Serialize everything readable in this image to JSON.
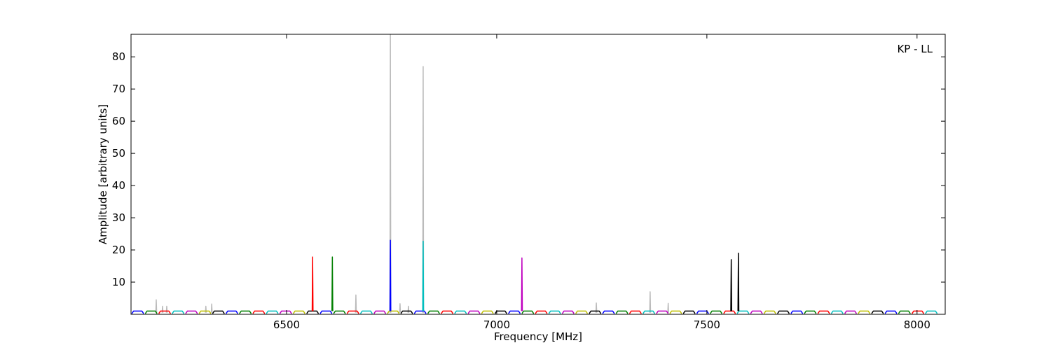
{
  "chart_data": {
    "type": "line",
    "xlabel": "Frequency [MHz]",
    "ylabel": "Amplitude [arbitrary units]",
    "annotation": "KP - LL",
    "xlim": [
      6130,
      8067
    ],
    "ylim": [
      0,
      87
    ],
    "xticks": [
      6500,
      7000,
      7500,
      8000
    ],
    "yticks": [
      10,
      20,
      30,
      40,
      50,
      60,
      70,
      80
    ],
    "series": [
      {
        "color": "#bbbbbb",
        "x": [
          6189,
          6190,
          6191,
          6192,
          6204,
          6205,
          6206,
          6207,
          6214,
          6215,
          6216,
          6217,
          6307,
          6308,
          6309,
          6310,
          6321,
          6322,
          6323,
          6324,
          6664,
          6665,
          6666,
          6667,
          6746,
          6747,
          6748,
          6749,
          6769,
          6770,
          6771,
          6772,
          6789,
          6790,
          6791,
          6792,
          6824,
          6825,
          6826,
          6827,
          7236,
          7237,
          7238,
          7239,
          7364,
          7365,
          7366,
          7367,
          7407,
          7408,
          7409,
          7410
        ],
        "values": [
          0.5,
          4.5,
          0.5,
          null,
          0.5,
          2.5,
          0.5,
          null,
          0.5,
          2.5,
          0.5,
          null,
          0.5,
          2.5,
          0.5,
          null,
          0.5,
          3.2,
          0.5,
          null,
          0.5,
          6,
          0.5,
          null,
          0.5,
          87,
          0.5,
          null,
          0.5,
          3.3,
          0.5,
          null,
          0.5,
          2.5,
          0.5,
          null,
          0.5,
          77,
          0.5,
          null,
          0.5,
          3.5,
          0.5,
          null,
          0.5,
          7,
          0.5,
          null,
          0.5,
          3.4,
          0.5,
          null
        ]
      },
      {
        "color": "#0000ff",
        "x": [
          6132,
          6136,
          6156,
          6160,
          6162,
          6356,
          6360,
          6380,
          6384,
          6386,
          6580,
          6584,
          6604,
          6608,
          6610,
          6804,
          6808,
          6828,
          6832,
          6834,
          7028,
          7032,
          7052,
          7056,
          7058,
          7252,
          7256,
          7276,
          7280,
          7282,
          7476,
          7480,
          7500,
          7504,
          7506,
          7700,
          7704,
          7724,
          7728,
          7730,
          7924,
          7928,
          7948,
          7952,
          7954
        ],
        "values": [
          0.2,
          1,
          1,
          0.2,
          null,
          0.2,
          1,
          1,
          0.2,
          null,
          0.2,
          1,
          1,
          0.2,
          null,
          0.2,
          1,
          1,
          0.2,
          null,
          0.2,
          1,
          1,
          0.2,
          null,
          0.2,
          1,
          1,
          0.2,
          null,
          0.2,
          1,
          1,
          0.2,
          null,
          0.2,
          1,
          1,
          0.2,
          null,
          0.2,
          1,
          1,
          0.2,
          null
        ]
      },
      {
        "color": "#007f00",
        "x": [
          6164,
          6168,
          6188,
          6192,
          6194,
          6388,
          6392,
          6412,
          6416,
          6418,
          6612,
          6616,
          6636,
          6640,
          6642,
          6836,
          6840,
          6860,
          6864,
          6866,
          7060,
          7064,
          7084,
          7088,
          7090,
          7284,
          7288,
          7308,
          7312,
          7314,
          7508,
          7512,
          7532,
          7536,
          7538,
          7732,
          7736,
          7756,
          7760,
          7762,
          7956,
          7960,
          7980,
          7984,
          7986
        ],
        "values": [
          0.2,
          1,
          1,
          0.2,
          null,
          0.2,
          1,
          1,
          0.2,
          null,
          0.2,
          1,
          1,
          0.2,
          null,
          0.2,
          1,
          1,
          0.2,
          null,
          0.2,
          1,
          1,
          0.2,
          null,
          0.2,
          1,
          1,
          0.2,
          null,
          0.2,
          1,
          1,
          0.2,
          null,
          0.2,
          1,
          1,
          0.2,
          null,
          0.2,
          1,
          1,
          0.2,
          null
        ]
      },
      {
        "color": "#ff0000",
        "x": [
          6196,
          6200,
          6220,
          6224,
          6226,
          6420,
          6424,
          6444,
          6448,
          6450,
          6644,
          6648,
          6668,
          6672,
          6674,
          6868,
          6872,
          6892,
          6896,
          6898,
          7092,
          7096,
          7116,
          7120,
          7122,
          7316,
          7320,
          7340,
          7344,
          7346,
          7540,
          7544,
          7564,
          7568,
          7570,
          7764,
          7768,
          7788,
          7792,
          7794,
          7988,
          7992,
          8012,
          8016,
          8018
        ],
        "values": [
          0.2,
          1,
          1,
          0.2,
          null,
          0.2,
          1,
          1,
          0.2,
          null,
          0.2,
          1,
          1,
          0.2,
          null,
          0.2,
          1,
          1,
          0.2,
          null,
          0.2,
          1,
          1,
          0.2,
          null,
          0.2,
          1,
          1,
          0.2,
          null,
          0.2,
          1,
          1,
          0.2,
          null,
          0.2,
          1,
          1,
          0.2,
          null,
          0.2,
          1,
          1,
          0.2,
          null
        ]
      },
      {
        "color": "#00bfbf",
        "x": [
          6228,
          6232,
          6252,
          6256,
          6258,
          6452,
          6456,
          6476,
          6480,
          6482,
          6676,
          6680,
          6700,
          6704,
          6706,
          6900,
          6904,
          6924,
          6928,
          6930,
          7124,
          7128,
          7148,
          7152,
          7154,
          7348,
          7352,
          7372,
          7376,
          7378,
          7572,
          7576,
          7596,
          7600,
          7602,
          7796,
          7800,
          7820,
          7824,
          7826,
          8020,
          8024,
          8044,
          8048,
          8050
        ],
        "values": [
          0.2,
          1,
          1,
          0.2,
          null,
          0.2,
          1,
          1,
          0.2,
          null,
          0.2,
          1,
          1,
          0.2,
          null,
          0.2,
          1,
          1,
          0.2,
          null,
          0.2,
          1,
          1,
          0.2,
          null,
          0.2,
          1,
          1,
          0.2,
          null,
          0.2,
          1,
          1,
          0.2,
          null,
          0.2,
          1,
          1,
          0.2,
          null,
          0.2,
          1,
          1,
          0.2,
          null
        ]
      },
      {
        "color": "#bf00bf",
        "x": [
          6260,
          6264,
          6284,
          6288,
          6290,
          6484,
          6488,
          6508,
          6512,
          6514,
          6708,
          6712,
          6732,
          6736,
          6738,
          6932,
          6936,
          6956,
          6960,
          6962,
          7156,
          7160,
          7180,
          7184,
          7186,
          7380,
          7384,
          7404,
          7408,
          7410,
          7604,
          7608,
          7628,
          7632,
          7634,
          7828,
          7832,
          7852,
          7856,
          7858
        ],
        "values": [
          0.2,
          1,
          1,
          0.2,
          null,
          0.2,
          1,
          1,
          0.2,
          null,
          0.2,
          1,
          1,
          0.2,
          null,
          0.2,
          1,
          1,
          0.2,
          null,
          0.2,
          1,
          1,
          0.2,
          null,
          0.2,
          1,
          1,
          0.2,
          null,
          0.2,
          1,
          1,
          0.2,
          null,
          0.2,
          1,
          1,
          0.2,
          null
        ]
      },
      {
        "color": "#bfbf00",
        "x": [
          6292,
          6296,
          6316,
          6320,
          6322,
          6516,
          6520,
          6540,
          6544,
          6546,
          6740,
          6744,
          6764,
          6768,
          6770,
          6964,
          6968,
          6988,
          6992,
          6994,
          7188,
          7192,
          7212,
          7216,
          7218,
          7412,
          7416,
          7436,
          7440,
          7442,
          7636,
          7640,
          7660,
          7664,
          7666,
          7860,
          7864,
          7884,
          7888,
          7890
        ],
        "values": [
          0.2,
          1,
          1,
          0.2,
          null,
          0.2,
          1,
          1,
          0.2,
          null,
          0.2,
          1,
          1,
          0.2,
          null,
          0.2,
          1,
          1,
          0.2,
          null,
          0.2,
          1,
          1,
          0.2,
          null,
          0.2,
          1,
          1,
          0.2,
          null,
          0.2,
          1,
          1,
          0.2,
          null,
          0.2,
          1,
          1,
          0.2,
          null
        ]
      },
      {
        "color": "#000000",
        "x": [
          6324,
          6328,
          6348,
          6352,
          6354,
          6548,
          6552,
          6572,
          6576,
          6578,
          6772,
          6776,
          6796,
          6800,
          6802,
          6996,
          7000,
          7020,
          7024,
          7026,
          7220,
          7224,
          7244,
          7248,
          7250,
          7444,
          7448,
          7468,
          7472,
          7474,
          7668,
          7672,
          7692,
          7696,
          7698,
          7892,
          7896,
          7916,
          7920,
          7922
        ],
        "values": [
          0.2,
          1,
          1,
          0.2,
          null,
          0.2,
          1,
          1,
          0.2,
          null,
          0.2,
          1,
          1,
          0.2,
          null,
          0.2,
          1,
          1,
          0.2,
          null,
          0.2,
          1,
          1,
          0.2,
          null,
          0.2,
          1,
          1,
          0.2,
          null,
          0.2,
          1,
          1,
          0.2,
          null,
          0.2,
          1,
          1,
          0.2,
          null
        ]
      },
      {
        "color": "#ff0000",
        "x": [
          6561,
          6562,
          6563
        ],
        "values": [
          1,
          17.8,
          1
        ]
      },
      {
        "color": "#007f00",
        "x": [
          6608,
          6609,
          6610
        ],
        "values": [
          1,
          17.8,
          1
        ]
      },
      {
        "color": "#0000ff",
        "x": [
          6746,
          6747,
          6748
        ],
        "values": [
          1,
          23,
          1
        ]
      },
      {
        "color": "#00bfbf",
        "x": [
          6824,
          6825,
          6826
        ],
        "values": [
          1,
          22.7,
          1
        ]
      },
      {
        "color": "#bf00bf",
        "x": [
          7059,
          7060,
          7061
        ],
        "values": [
          1,
          17.5,
          1
        ]
      },
      {
        "color": "#000000",
        "x": [
          7557,
          7558,
          7559
        ],
        "values": [
          1,
          17,
          1
        ]
      },
      {
        "color": "#000000",
        "x": [
          7574,
          7575,
          7576
        ],
        "values": [
          1,
          19,
          1
        ]
      }
    ]
  }
}
